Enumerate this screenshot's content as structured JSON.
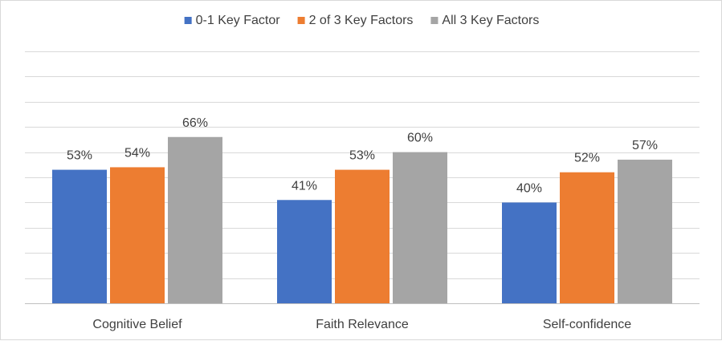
{
  "chart_data": {
    "type": "bar",
    "categories": [
      "Cognitive Belief",
      "Faith Relevance",
      "Self-confidence"
    ],
    "series": [
      {
        "name": "0-1 Key Factor",
        "values": [
          53,
          41,
          40
        ],
        "color": "#4472C4"
      },
      {
        "name": "2 of 3 Key Factors",
        "values": [
          54,
          53,
          52
        ],
        "color": "#ED7D31"
      },
      {
        "name": "All 3 Key Factors",
        "values": [
          66,
          60,
          57
        ],
        "color": "#A5A5A5"
      }
    ],
    "data_labels": [
      [
        "53%",
        "41%",
        "40%"
      ],
      [
        "54%",
        "53%",
        "52%"
      ],
      [
        "66%",
        "60%",
        "57%"
      ]
    ],
    "ylim": [
      0,
      100
    ],
    "grid": true,
    "gridline_step": 10,
    "legend_position": "top-center",
    "title": "",
    "xlabel": "",
    "ylabel": ""
  }
}
